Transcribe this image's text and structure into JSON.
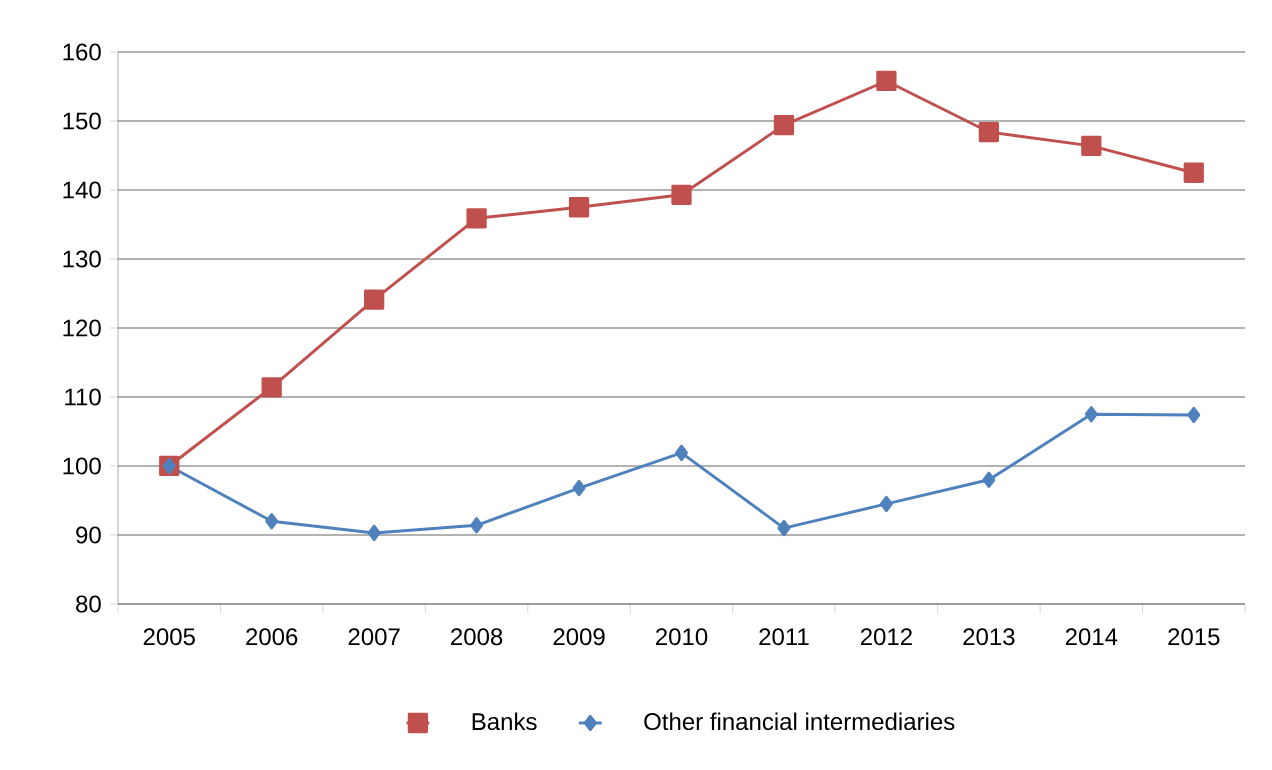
{
  "chart_data": {
    "type": "line",
    "categories": [
      "2005",
      "2006",
      "2007",
      "2008",
      "2009",
      "2010",
      "2011",
      "2012",
      "2013",
      "2014",
      "2015"
    ],
    "series": [
      {
        "name": "Banks",
        "color": "#c0504d",
        "marker": "square",
        "values": [
          100,
          111.4,
          124.1,
          135.9,
          137.5,
          139.3,
          149.4,
          155.8,
          148.4,
          146.4,
          142.5
        ]
      },
      {
        "name": "Other financial intermediaries",
        "color": "#4f81bd",
        "marker": "diamond",
        "values": [
          100,
          92.0,
          90.3,
          91.4,
          96.8,
          101.9,
          91.0,
          94.5,
          98.0,
          107.5,
          107.4
        ]
      }
    ],
    "ylim": [
      80,
      160
    ],
    "yticks": [
      80,
      90,
      100,
      110,
      120,
      130,
      140,
      150,
      160
    ],
    "grid": "y",
    "legend": "bottom",
    "line_style": "solid"
  }
}
